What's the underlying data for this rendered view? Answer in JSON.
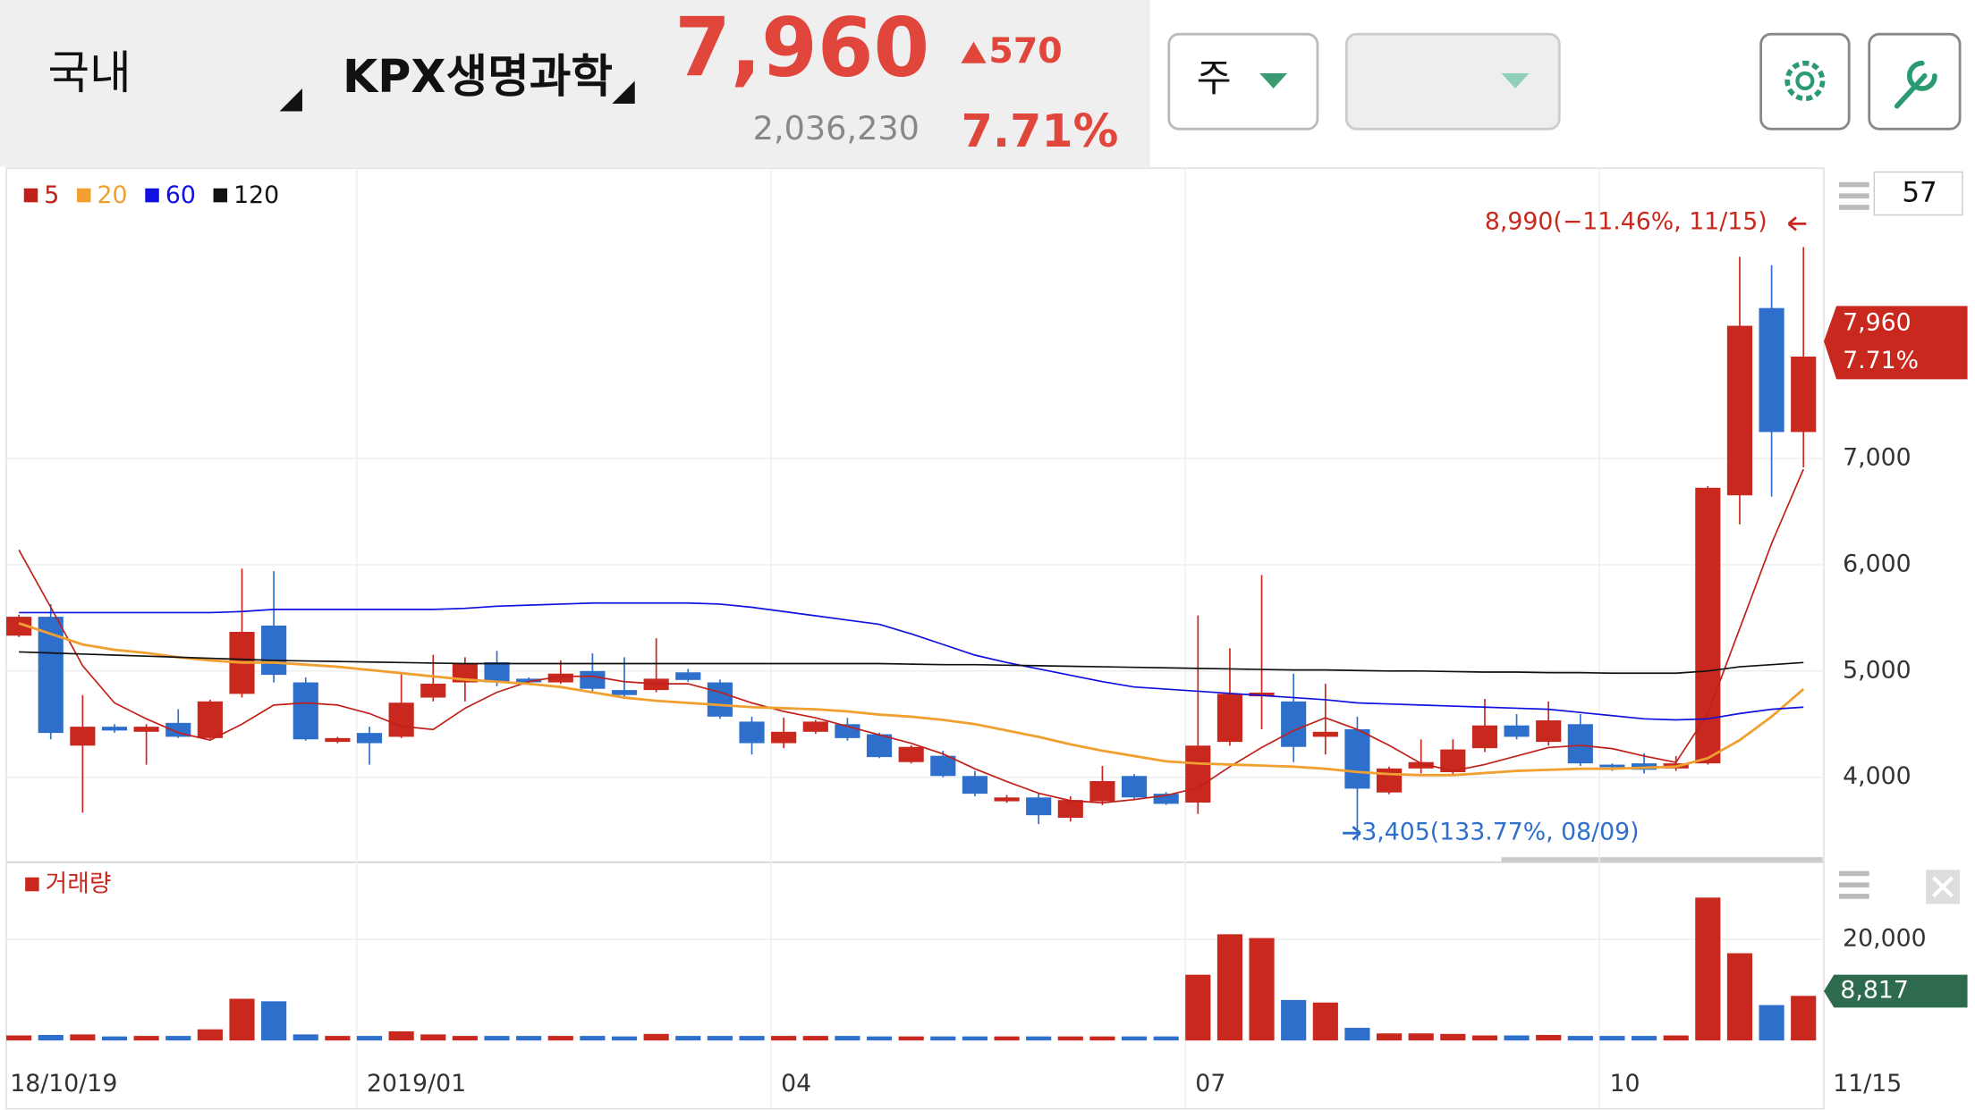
{
  "header": {
    "market": "국내",
    "stock": "KPX생명과학",
    "price": "7,960",
    "change": "570",
    "volume": "2,036,230",
    "change_pct": "7.71%",
    "period": "주"
  },
  "chart_data": {
    "type": "candlestick",
    "categories": [
      "18/10/19",
      null,
      null,
      null,
      null,
      null,
      null,
      null,
      null,
      null,
      null,
      "2019/01",
      null,
      null,
      null,
      null,
      null,
      null,
      null,
      null,
      null,
      null,
      null,
      null,
      "04",
      null,
      null,
      null,
      null,
      null,
      null,
      null,
      null,
      null,
      null,
      null,
      null,
      "07",
      null,
      null,
      null,
      null,
      null,
      null,
      null,
      null,
      null,
      null,
      null,
      null,
      "10",
      null,
      null,
      null,
      null,
      null,
      "11/15"
    ],
    "open": [
      5333,
      5511,
      4298,
      4476,
      4428,
      4512,
      4369,
      4785,
      5428,
      4893,
      4333,
      4417,
      4381,
      4750,
      4893,
      5083,
      4928,
      4893,
      5000,
      4821,
      4821,
      4988,
      4893,
      4524,
      4321,
      4428,
      4500,
      4405,
      4143,
      4202,
      4012,
      3774,
      3810,
      3619,
      3774,
      4012,
      3845,
      3762,
      4333,
      4762,
      4714,
      4381,
      4452,
      3857,
      4083,
      4048,
      4274,
      4488,
      4333,
      4500,
      4119,
      4131,
      4083,
      4131,
      6654,
      8417,
      7250
    ],
    "high": [
      5530,
      5630,
      4774,
      4500,
      4500,
      4640,
      4730,
      5964,
      5940,
      4940,
      4380,
      4476,
      4976,
      5154,
      5130,
      5190,
      4940,
      5100,
      5166,
      5130,
      5309,
      5020,
      4920,
      4571,
      4560,
      4540,
      4560,
      4420,
      4300,
      4250,
      4060,
      3833,
      3845,
      3821,
      4107,
      4030,
      3860,
      5523,
      5214,
      5904,
      4976,
      4881,
      4571,
      4100,
      4357,
      4357,
      4738,
      4595,
      4714,
      4595,
      4130,
      4226,
      4200,
      6740,
      8900,
      8820,
      8990
    ],
    "low": [
      5320,
      4357,
      3667,
      4420,
      4119,
      4370,
      4360,
      4750,
      4893,
      4345,
      4320,
      4119,
      4369,
      4714,
      4714,
      4857,
      4880,
      4880,
      4800,
      4750,
      4800,
      4900,
      4550,
      4214,
      4274,
      4410,
      4345,
      4180,
      4130,
      4000,
      3821,
      3760,
      3560,
      3583,
      3738,
      3790,
      3740,
      3655,
      4298,
      4452,
      4143,
      4214,
      3405,
      3840,
      4036,
      4012,
      4238,
      4357,
      4298,
      4107,
      4060,
      4036,
      4060,
      4119,
      6380,
      6642,
      6917
    ],
    "close": [
      5511,
      4417,
      4476,
      4440,
      4476,
      4381,
      4714,
      5369,
      4964,
      4357,
      4369,
      4321,
      4702,
      4881,
      5071,
      4893,
      4893,
      4976,
      4833,
      4774,
      4928,
      4916,
      4571,
      4321,
      4428,
      4524,
      4369,
      4190,
      4286,
      4012,
      3845,
      3810,
      3643,
      3786,
      3964,
      3810,
      3750,
      4298,
      4785,
      4797,
      4286,
      4428,
      3893,
      4083,
      4143,
      4262,
      4488,
      4381,
      4536,
      4131,
      4095,
      4071,
      4131,
      6725,
      8250,
      7250,
      7960
    ],
    "up_color": "#c8281e",
    "down_color": "#2f6fcc",
    "ma": [
      {
        "name": "5",
        "color": "#c0201a",
        "values": [
          6140,
          5600,
          5050,
          4700,
          4550,
          4420,
          4350,
          4500,
          4680,
          4700,
          4680,
          4600,
          4480,
          4450,
          4650,
          4800,
          4900,
          4950,
          4950,
          4900,
          4880,
          4880,
          4800,
          4700,
          4620,
          4560,
          4480,
          4400,
          4320,
          4220,
          4080,
          3960,
          3850,
          3780,
          3760,
          3790,
          3830,
          3900,
          4100,
          4280,
          4440,
          4560,
          4450,
          4300,
          4130,
          4060,
          4120,
          4200,
          4280,
          4300,
          4270,
          4200,
          4140,
          4600,
          5400,
          6200,
          6900
        ]
      },
      {
        "name": "20",
        "color": "#f0a030",
        "values": [
          5450,
          5350,
          5250,
          5200,
          5170,
          5130,
          5100,
          5080,
          5080,
          5060,
          5040,
          5010,
          4980,
          4950,
          4920,
          4900,
          4880,
          4850,
          4800,
          4750,
          4720,
          4700,
          4680,
          4660,
          4650,
          4640,
          4620,
          4590,
          4570,
          4540,
          4500,
          4440,
          4380,
          4310,
          4250,
          4200,
          4150,
          4130,
          4120,
          4110,
          4100,
          4080,
          4050,
          4030,
          4020,
          4020,
          4040,
          4060,
          4070,
          4080,
          4080,
          4090,
          4100,
          4180,
          4350,
          4570,
          4830
        ]
      },
      {
        "name": "60",
        "color": "#1010e0",
        "values": [
          5550,
          5550,
          5550,
          5550,
          5550,
          5550,
          5550,
          5560,
          5580,
          5580,
          5580,
          5580,
          5580,
          5580,
          5590,
          5610,
          5620,
          5630,
          5640,
          5640,
          5640,
          5640,
          5630,
          5600,
          5560,
          5520,
          5480,
          5440,
          5350,
          5250,
          5150,
          5080,
          5020,
          4960,
          4900,
          4850,
          4830,
          4810,
          4790,
          4770,
          4750,
          4730,
          4700,
          4690,
          4680,
          4670,
          4660,
          4650,
          4640,
          4610,
          4580,
          4550,
          4540,
          4550,
          4600,
          4640,
          4660
        ]
      },
      {
        "name": "120",
        "color": "#111111",
        "values": [
          5180,
          5170,
          5160,
          5150,
          5140,
          5130,
          5120,
          5110,
          5100,
          5095,
          5090,
          5085,
          5080,
          5075,
          5070,
          5070,
          5070,
          5070,
          5070,
          5070,
          5070,
          5070,
          5070,
          5070,
          5070,
          5070,
          5070,
          5070,
          5065,
          5060,
          5060,
          5055,
          5050,
          5045,
          5040,
          5035,
          5030,
          5025,
          5020,
          5015,
          5010,
          5010,
          5005,
          5000,
          5000,
          4995,
          4990,
          4990,
          4985,
          4985,
          4980,
          4980,
          4980,
          5000,
          5040,
          5060,
          5080
        ]
      }
    ],
    "ylim": [
      3260,
      9710
    ],
    "yticks": [
      {
        "value": 4000,
        "label": "4,000"
      },
      {
        "value": 5000,
        "label": "5,000"
      },
      {
        "value": 6000,
        "label": "6,000"
      },
      {
        "value": 7000,
        "label": "7,000"
      }
    ],
    "high_label": "8,990(−11.46%, 11/15)",
    "low_label": "3,405(133.77%, 08/09)",
    "view_count": 57,
    "volume": {
      "name": "거래량",
      "values": [
        1000,
        1100,
        1200,
        800,
        900,
        900,
        2200,
        8250,
        7750,
        1200,
        900,
        900,
        1800,
        1200,
        900,
        900,
        900,
        900,
        900,
        800,
        1300,
        900,
        900,
        900,
        900,
        900,
        900,
        800,
        800,
        800,
        800,
        800,
        800,
        800,
        800,
        800,
        800,
        13000,
        21000,
        20250,
        8000,
        7500,
        2500,
        1400,
        1400,
        1300,
        1000,
        1000,
        1100,
        900,
        900,
        900,
        1000,
        28250,
        17250,
        7000,
        8817
      ],
      "last_value_label": "8,817",
      "ylim": [
        0,
        33250
      ],
      "yticks": [
        {
          "value": 20000,
          "label": "20,000"
        }
      ]
    }
  }
}
